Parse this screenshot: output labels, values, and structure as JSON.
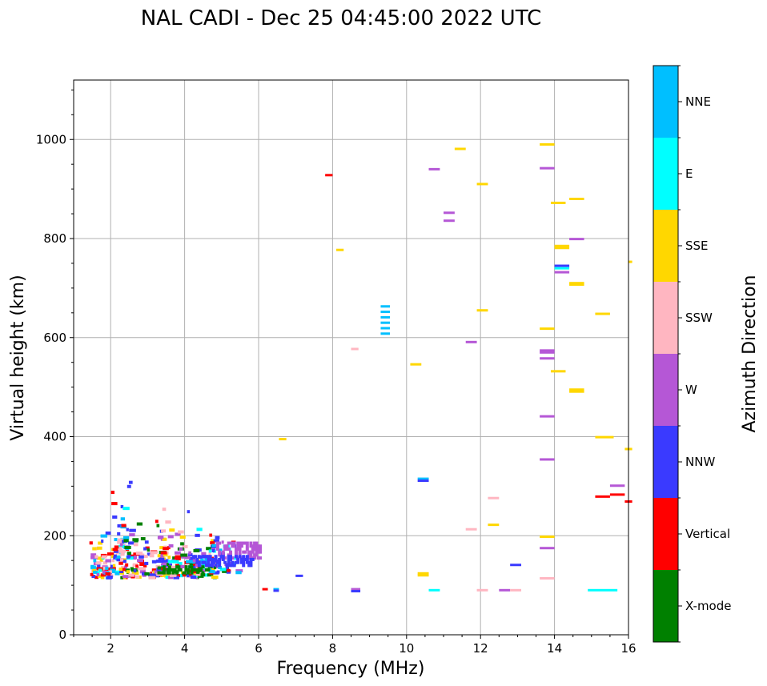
{
  "chart_data": {
    "type": "scatter",
    "title": "NAL CADI - Dec 25 04:45:00 2022 UTC",
    "xlabel": "Frequency (MHz)",
    "ylabel": "Virtual height (km)",
    "xlim": [
      1,
      16
    ],
    "ylim": [
      0,
      1120
    ],
    "xticks": [
      "2",
      "4",
      "6",
      "8",
      "10",
      "12",
      "14",
      "16"
    ],
    "yticks": [
      "0",
      "200",
      "400",
      "600",
      "800",
      "1000"
    ],
    "grid": true,
    "colorbar": {
      "label": "Azimuth Direction",
      "categories": [
        {
          "name": "X-mode",
          "color": "#008000"
        },
        {
          "name": "Vertical",
          "color": "#ff0000"
        },
        {
          "name": "NNW",
          "color": "#3a3aff"
        },
        {
          "name": "W",
          "color": "#b557d6"
        },
        {
          "name": "SSW",
          "color": "#ffb6c1"
        },
        {
          "name": "SSE",
          "color": "#ffd700"
        },
        {
          "name": "E",
          "color": "#00ffff"
        },
        {
          "name": "NNE",
          "color": "#00bfff"
        }
      ]
    },
    "echoes": [
      {
        "f": 7.8,
        "f2": 8.0,
        "h": 928,
        "dir": "Vertical"
      },
      {
        "f": 11.3,
        "f2": 11.6,
        "h": 981,
        "dir": "SSE"
      },
      {
        "f": 13.6,
        "f2": 14.0,
        "h": 990,
        "dir": "SSE"
      },
      {
        "f": 10.6,
        "f2": 10.9,
        "h": 940,
        "dir": "W"
      },
      {
        "f": 13.6,
        "f2": 14.0,
        "h": 942,
        "dir": "W"
      },
      {
        "f": 11.9,
        "f2": 12.2,
        "h": 910,
        "dir": "SSE"
      },
      {
        "f": 14.4,
        "f2": 14.8,
        "h": 880,
        "dir": "SSE"
      },
      {
        "f": 13.9,
        "f2": 14.3,
        "h": 872,
        "dir": "SSE"
      },
      {
        "f": 11.0,
        "f2": 11.3,
        "h": 852,
        "dir": "W"
      },
      {
        "f": 11.0,
        "f2": 11.3,
        "h": 836,
        "dir": "W"
      },
      {
        "f": 14.4,
        "f2": 14.8,
        "h": 799,
        "dir": "W"
      },
      {
        "f": 14.0,
        "f2": 14.4,
        "h": 785,
        "dir": "SSE"
      },
      {
        "f": 14.0,
        "f2": 14.4,
        "h": 781,
        "dir": "SSE"
      },
      {
        "f": 8.1,
        "f2": 8.3,
        "h": 777,
        "dir": "SSE"
      },
      {
        "f": 16.0,
        "f2": 16.1,
        "h": 753,
        "dir": "SSE"
      },
      {
        "f": 14.0,
        "f2": 14.4,
        "h": 745,
        "dir": "NNW"
      },
      {
        "f": 14.0,
        "f2": 14.4,
        "h": 740,
        "dir": "E"
      },
      {
        "f": 14.0,
        "f2": 14.4,
        "h": 732,
        "dir": "W"
      },
      {
        "f": 14.4,
        "f2": 14.8,
        "h": 710,
        "dir": "SSE"
      },
      {
        "f": 14.4,
        "f2": 14.8,
        "h": 707,
        "dir": "SSE"
      },
      {
        "f": 11.9,
        "f2": 12.2,
        "h": 655,
        "dir": "SSE"
      },
      {
        "f": 15.1,
        "f2": 15.5,
        "h": 648,
        "dir": "SSE"
      },
      {
        "f": 9.3,
        "f2": 9.55,
        "h": 663,
        "dir": "NNE"
      },
      {
        "f": 9.3,
        "f2": 9.55,
        "h": 652,
        "dir": "NNE"
      },
      {
        "f": 9.3,
        "f2": 9.55,
        "h": 641,
        "dir": "NNE"
      },
      {
        "f": 9.3,
        "f2": 9.55,
        "h": 630,
        "dir": "NNE"
      },
      {
        "f": 9.3,
        "f2": 9.55,
        "h": 619,
        "dir": "NNE"
      },
      {
        "f": 9.3,
        "f2": 9.55,
        "h": 608,
        "dir": "NNE"
      },
      {
        "f": 13.6,
        "f2": 14.0,
        "h": 618,
        "dir": "SSE"
      },
      {
        "f": 11.6,
        "f2": 11.9,
        "h": 591,
        "dir": "W"
      },
      {
        "f": 8.5,
        "f2": 8.7,
        "h": 577,
        "dir": "SSW"
      },
      {
        "f": 13.6,
        "f2": 14.0,
        "h": 574,
        "dir": "W"
      },
      {
        "f": 13.6,
        "f2": 14.0,
        "h": 570,
        "dir": "W"
      },
      {
        "f": 13.6,
        "f2": 14.0,
        "h": 558,
        "dir": "W"
      },
      {
        "f": 10.1,
        "f2": 10.4,
        "h": 546,
        "dir": "SSE"
      },
      {
        "f": 13.9,
        "f2": 14.3,
        "h": 532,
        "dir": "SSE"
      },
      {
        "f": 14.4,
        "f2": 14.8,
        "h": 495,
        "dir": "SSE"
      },
      {
        "f": 14.4,
        "f2": 14.8,
        "h": 491,
        "dir": "SSE"
      },
      {
        "f": 13.6,
        "f2": 14.0,
        "h": 441,
        "dir": "W"
      },
      {
        "f": 15.1,
        "f2": 15.6,
        "h": 399,
        "dir": "SSE"
      },
      {
        "f": 6.55,
        "f2": 6.75,
        "h": 395,
        "dir": "SSE"
      },
      {
        "f": 15.9,
        "f2": 16.1,
        "h": 375,
        "dir": "SSE"
      },
      {
        "f": 13.6,
        "f2": 14.0,
        "h": 354,
        "dir": "W"
      },
      {
        "f": 10.3,
        "f2": 10.6,
        "h": 315,
        "dir": "NNE"
      },
      {
        "f": 10.3,
        "f2": 10.6,
        "h": 311,
        "dir": "NNW"
      },
      {
        "f": 15.5,
        "f2": 15.9,
        "h": 301,
        "dir": "W"
      },
      {
        "f": 15.5,
        "f2": 15.9,
        "h": 283,
        "dir": "Vertical"
      },
      {
        "f": 15.1,
        "f2": 15.5,
        "h": 279,
        "dir": "Vertical"
      },
      {
        "f": 15.9,
        "f2": 16.1,
        "h": 269,
        "dir": "Vertical"
      },
      {
        "f": 12.2,
        "f2": 12.5,
        "h": 276,
        "dir": "SSW"
      },
      {
        "f": 12.2,
        "f2": 12.5,
        "h": 222,
        "dir": "SSE"
      },
      {
        "f": 11.6,
        "f2": 11.9,
        "h": 213,
        "dir": "SSW"
      },
      {
        "f": 13.6,
        "f2": 14.0,
        "h": 198,
        "dir": "SSE"
      },
      {
        "f": 13.6,
        "f2": 14.0,
        "h": 175,
        "dir": "W"
      },
      {
        "f": 12.8,
        "f2": 13.1,
        "h": 141,
        "dir": "NNW"
      },
      {
        "f": 10.3,
        "f2": 10.6,
        "h": 124,
        "dir": "SSE"
      },
      {
        "f": 10.3,
        "f2": 10.6,
        "h": 120,
        "dir": "SSE"
      },
      {
        "f": 13.6,
        "f2": 14.0,
        "h": 114,
        "dir": "SSW"
      },
      {
        "f": 7.0,
        "f2": 7.2,
        "h": 119,
        "dir": "NNW"
      },
      {
        "f": 6.1,
        "f2": 6.25,
        "h": 92,
        "dir": "Vertical"
      },
      {
        "f": 6.4,
        "f2": 6.55,
        "h": 92,
        "dir": "NNE"
      },
      {
        "f": 6.4,
        "f2": 6.55,
        "h": 89,
        "dir": "NNW"
      },
      {
        "f": 8.5,
        "f2": 8.75,
        "h": 92,
        "dir": "W"
      },
      {
        "f": 8.5,
        "f2": 8.75,
        "h": 88,
        "dir": "NNW"
      },
      {
        "f": 10.6,
        "f2": 10.9,
        "h": 90,
        "dir": "E"
      },
      {
        "f": 11.9,
        "f2": 12.2,
        "h": 90,
        "dir": "SSW"
      },
      {
        "f": 12.5,
        "f2": 12.8,
        "h": 90,
        "dir": "W"
      },
      {
        "f": 12.8,
        "f2": 13.1,
        "h": 90,
        "dir": "SSW"
      },
      {
        "f": 14.9,
        "f2": 15.7,
        "h": 90,
        "dir": "E"
      }
    ],
    "clusters": [
      {
        "f1": 1.4,
        "f2": 2.2,
        "h1": 115,
        "h2": 215,
        "n": 70,
        "dirs": [
          "Vertical",
          "SSE",
          "NNE",
          "E",
          "NNW",
          "SSW",
          "W"
        ]
      },
      {
        "f1": 2.0,
        "f2": 2.5,
        "h1": 150,
        "h2": 320,
        "n": 45,
        "dirs": [
          "NNE",
          "E",
          "SSW",
          "Vertical",
          "NNW"
        ]
      },
      {
        "f1": 2.2,
        "f2": 3.5,
        "h1": 115,
        "h2": 250,
        "n": 120,
        "dirs": [
          "Vertical",
          "SSW",
          "W",
          "NNW",
          "X-mode",
          "SSE"
        ]
      },
      {
        "f1": 3.2,
        "f2": 4.8,
        "h1": 115,
        "h2": 260,
        "n": 120,
        "dirs": [
          "X-mode",
          "W",
          "Vertical",
          "SSW",
          "NNW",
          "E",
          "SSE"
        ]
      },
      {
        "f1": 4.0,
        "f2": 5.4,
        "h1": 125,
        "h2": 200,
        "n": 70,
        "dirs": [
          "W",
          "NNW",
          "X-mode",
          "E",
          "NNE",
          "Vertical"
        ]
      }
    ],
    "traces": [
      {
        "f1": 4.8,
        "f2": 6.0,
        "h1": 155,
        "h2": 185,
        "dir": "W"
      },
      {
        "f1": 4.2,
        "f2": 5.8,
        "h1": 140,
        "h2": 160,
        "dir": "NNW"
      },
      {
        "f1": 3.4,
        "f2": 4.6,
        "h1": 125,
        "h2": 140,
        "dir": "X-mode"
      }
    ]
  }
}
